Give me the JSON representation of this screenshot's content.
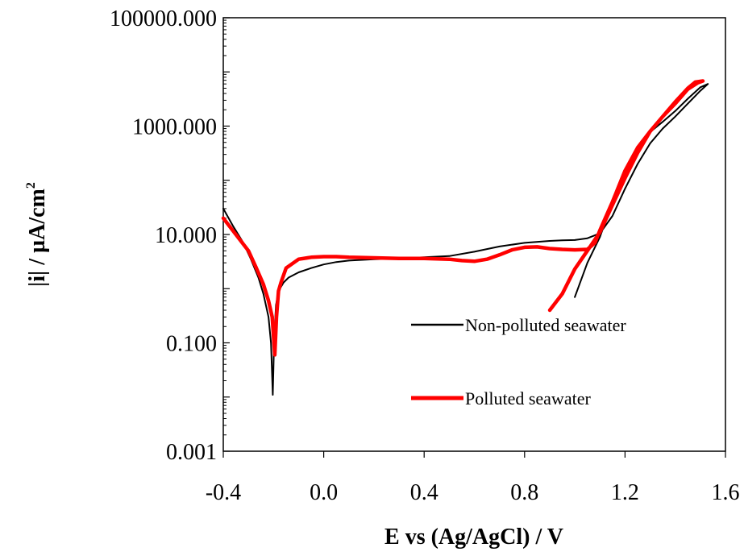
{
  "chart_data": {
    "type": "line",
    "title": "",
    "xlabel": "E vs (Ag/AgCl) / V",
    "ylabel_main": "|i| / µA/cm",
    "ylabel_sup": "2",
    "y_scale": "log",
    "xlim": [
      -0.4,
      1.6
    ],
    "ylim": [
      0.001,
      100000
    ],
    "x_ticks": [
      -0.4,
      0.0,
      0.4,
      0.8,
      1.2,
      1.6
    ],
    "x_tick_labels": [
      "-0.4",
      "0.0",
      "0.4",
      "0.8",
      "1.2",
      "1.6"
    ],
    "y_ticks": [
      0.001,
      0.1,
      10,
      1000,
      100000
    ],
    "y_tick_labels": [
      "0.001",
      "0.100",
      "10.000",
      "1000.000",
      "100000.000"
    ],
    "grid": false,
    "legend_position": "lower-right",
    "series": [
      {
        "name": "Non-polluted seawater",
        "color": "#000000",
        "points": [
          [
            -0.4,
            30
          ],
          [
            -0.36,
            14
          ],
          [
            -0.32,
            7
          ],
          [
            -0.29,
            3.5
          ],
          [
            -0.26,
            1.6
          ],
          [
            -0.24,
            0.8
          ],
          [
            -0.22,
            0.3
          ],
          [
            -0.21,
            0.1
          ],
          [
            -0.203,
            0.011
          ],
          [
            -0.197,
            0.13
          ],
          [
            -0.19,
            0.5
          ],
          [
            -0.18,
            0.9
          ],
          [
            -0.16,
            1.3
          ],
          [
            -0.14,
            1.6
          ],
          [
            -0.1,
            2.0
          ],
          [
            -0.05,
            2.4
          ],
          [
            0.0,
            2.8
          ],
          [
            0.05,
            3.1
          ],
          [
            0.1,
            3.3
          ],
          [
            0.2,
            3.5
          ],
          [
            0.3,
            3.6
          ],
          [
            0.4,
            3.8
          ],
          [
            0.5,
            4.0
          ],
          [
            0.6,
            4.8
          ],
          [
            0.7,
            6.0
          ],
          [
            0.8,
            7.0
          ],
          [
            0.9,
            7.6
          ],
          [
            0.95,
            7.8
          ],
          [
            1.0,
            7.9
          ],
          [
            1.05,
            8.5
          ],
          [
            1.1,
            10.5
          ],
          [
            1.15,
            22
          ],
          [
            1.2,
            70
          ],
          [
            1.25,
            200
          ],
          [
            1.3,
            480
          ],
          [
            1.35,
            900
          ],
          [
            1.4,
            1500
          ],
          [
            1.45,
            2600
          ],
          [
            1.5,
            4500
          ],
          [
            1.53,
            6000
          ],
          [
            1.5,
            5200
          ],
          [
            1.45,
            3200
          ],
          [
            1.4,
            1900
          ],
          [
            1.35,
            1200
          ],
          [
            1.3,
            780
          ],
          [
            1.25,
            400
          ],
          [
            1.2,
            140
          ],
          [
            1.15,
            40
          ],
          [
            1.1,
            9
          ],
          [
            1.05,
            3
          ],
          [
            1.0,
            0.7
          ]
        ]
      },
      {
        "name": "Polluted seawater",
        "color": "#ff0000",
        "points": [
          [
            -0.4,
            20
          ],
          [
            -0.35,
            10
          ],
          [
            -0.3,
            5
          ],
          [
            -0.27,
            2.5
          ],
          [
            -0.24,
            1.2
          ],
          [
            -0.22,
            0.6
          ],
          [
            -0.205,
            0.3
          ],
          [
            -0.195,
            0.06
          ],
          [
            -0.188,
            0.3
          ],
          [
            -0.18,
            0.9
          ],
          [
            -0.17,
            1.3
          ],
          [
            -0.15,
            2.4
          ],
          [
            -0.1,
            3.5
          ],
          [
            -0.05,
            3.8
          ],
          [
            0.0,
            3.9
          ],
          [
            0.05,
            3.9
          ],
          [
            0.1,
            3.8
          ],
          [
            0.2,
            3.7
          ],
          [
            0.3,
            3.6
          ],
          [
            0.4,
            3.6
          ],
          [
            0.5,
            3.5
          ],
          [
            0.55,
            3.3
          ],
          [
            0.6,
            3.2
          ],
          [
            0.65,
            3.5
          ],
          [
            0.7,
            4.2
          ],
          [
            0.75,
            5.2
          ],
          [
            0.8,
            5.8
          ],
          [
            0.85,
            5.9
          ],
          [
            0.9,
            5.5
          ],
          [
            0.95,
            5.3
          ],
          [
            1.0,
            5.2
          ],
          [
            1.05,
            5.3
          ],
          [
            1.08,
            7
          ],
          [
            1.1,
            12
          ],
          [
            1.15,
            40
          ],
          [
            1.2,
            150
          ],
          [
            1.25,
            400
          ],
          [
            1.3,
            800
          ],
          [
            1.35,
            1500
          ],
          [
            1.4,
            2800
          ],
          [
            1.45,
            5000
          ],
          [
            1.48,
            6500
          ],
          [
            1.51,
            6800
          ],
          [
            1.49,
            6300
          ],
          [
            1.45,
            4800
          ],
          [
            1.4,
            2600
          ],
          [
            1.35,
            1500
          ],
          [
            1.3,
            800
          ],
          [
            1.25,
            320
          ],
          [
            1.2,
            110
          ],
          [
            1.15,
            35
          ],
          [
            1.1,
            11
          ],
          [
            1.05,
            5
          ],
          [
            1.0,
            2.3
          ],
          [
            0.95,
            0.8
          ],
          [
            0.9,
            0.4
          ]
        ]
      }
    ]
  }
}
